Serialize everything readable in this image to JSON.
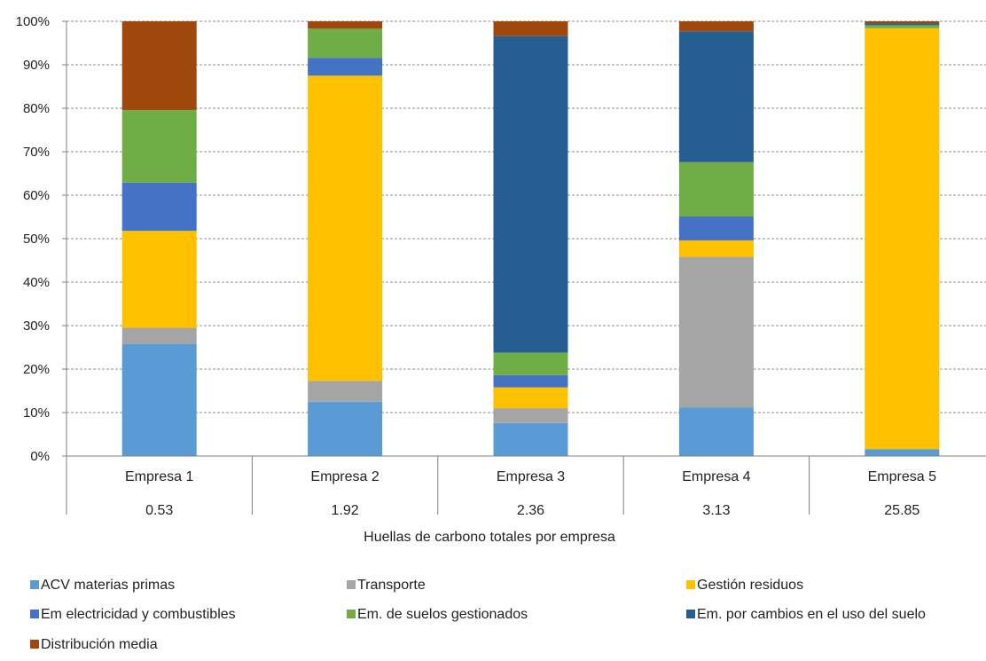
{
  "chart_data": {
    "type": "bar",
    "stacked": true,
    "percent_stacked": true,
    "categories": [
      "Empresa 1",
      "Empresa 2",
      "Empresa 3",
      "Empresa 4",
      "Empresa 5"
    ],
    "category_sublabels": [
      "0.53",
      "1.92",
      "2.36",
      "3.13",
      "25.85"
    ],
    "xlabel": "Huellas de carbono totales por empresa",
    "ylabel": "",
    "ylim": [
      0,
      100
    ],
    "yticks": [
      "0%",
      "10%",
      "20%",
      "30%",
      "40%",
      "50%",
      "60%",
      "70%",
      "80%",
      "90%",
      "100%"
    ],
    "grid": "horizontal dashed",
    "legend_position": "bottom",
    "series": [
      {
        "name": "ACV materias primas",
        "color": "#5B9BD5",
        "values": [
          25.8,
          12.5,
          7.6,
          11.2,
          1.6
        ]
      },
      {
        "name": "Transporte",
        "color": "#A5A5A5",
        "values": [
          3.7,
          4.8,
          3.4,
          34.6,
          0.0
        ]
      },
      {
        "name": "Gestión residuos",
        "color": "#FFC000",
        "values": [
          22.3,
          70.2,
          4.8,
          3.8,
          96.8
        ]
      },
      {
        "name": "Em electricidad y combustibles",
        "color": "#4472C4",
        "values": [
          11.1,
          4.1,
          2.8,
          5.5,
          0.0
        ]
      },
      {
        "name": "Em.  de suelos gestionados",
        "color": "#70AD47",
        "values": [
          16.7,
          6.7,
          5.2,
          12.5,
          0.7
        ]
      },
      {
        "name": "Em. por cambios en el uso del suelo",
        "color": "#255E91",
        "values": [
          0.0,
          0.0,
          72.8,
          30.1,
          0.4
        ]
      },
      {
        "name": "Distribución media",
        "color": "#9E480E",
        "values": [
          20.4,
          1.7,
          3.4,
          2.3,
          0.5
        ]
      }
    ]
  }
}
